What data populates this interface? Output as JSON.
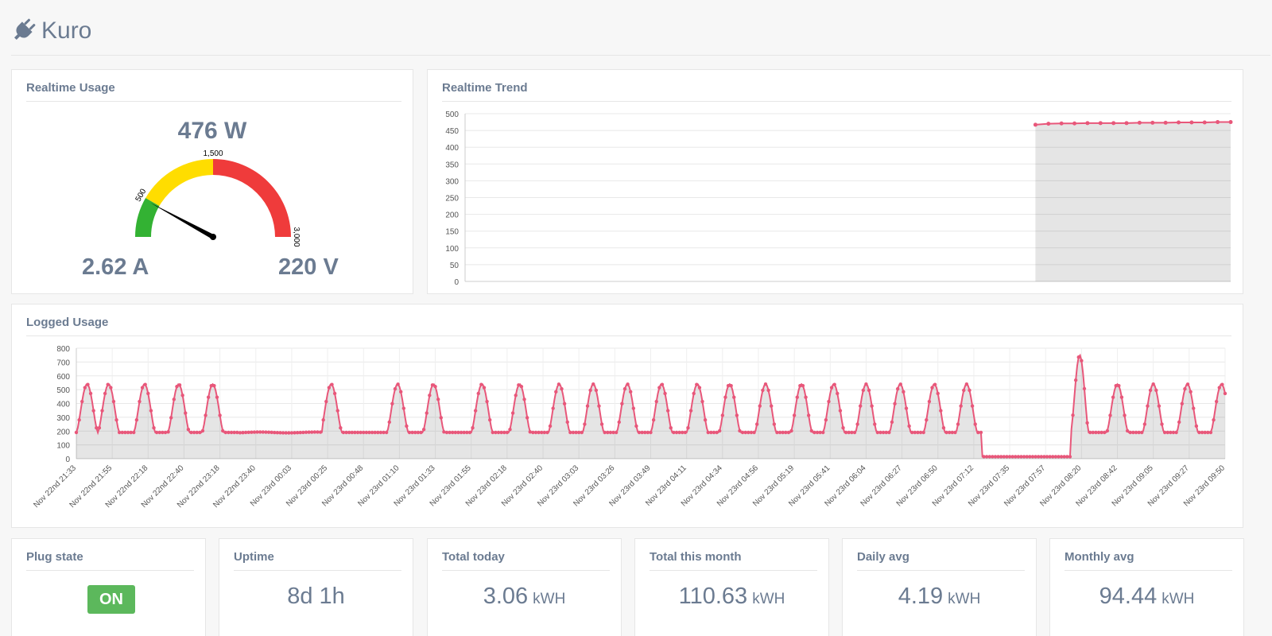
{
  "app": {
    "title": "Kuro",
    "icon": "plug-icon"
  },
  "realtime_usage": {
    "title": "Realtime Usage",
    "power": "476 W",
    "current": "2.62 A",
    "voltage": "220 V",
    "gauge": {
      "min": 0,
      "max": 3000,
      "value": 476,
      "green_to": 500,
      "yellow_to": 1500,
      "tick_500": "500",
      "tick_1500": "1,500",
      "tick_3000": "3,000"
    },
    "colors": {
      "green": "#33b233",
      "yellow": "#ffdd00",
      "red": "#ef3b3b"
    }
  },
  "realtime_trend": {
    "title": "Realtime Trend",
    "chart_data": {
      "type": "area",
      "ylim": [
        0,
        500
      ],
      "yticks": [
        "0",
        "50",
        "100",
        "150",
        "200",
        "250",
        "300",
        "350",
        "400",
        "450",
        "500"
      ],
      "series": [
        {
          "values": [
            467,
            470,
            471,
            471,
            472,
            472,
            472,
            472,
            473,
            473,
            473,
            474,
            474,
            474,
            475,
            475
          ]
        }
      ],
      "empty_fraction": 0.745,
      "color": "#e8577a"
    }
  },
  "logged_usage": {
    "title": "Logged Usage",
    "chart_data": {
      "type": "area",
      "ylim": [
        0,
        800
      ],
      "yticks": [
        "0",
        "100",
        "200",
        "300",
        "400",
        "500",
        "600",
        "700",
        "800"
      ],
      "categories": [
        "Nov 22nd 21:33",
        "Nov 22nd 21:55",
        "Nov 22nd 22:18",
        "Nov 22nd 22:40",
        "Nov 22nd 23:18",
        "Nov 22nd 23:40",
        "Nov 23rd 00:03",
        "Nov 23rd 00:25",
        "Nov 23rd 00:48",
        "Nov 23rd 01:10",
        "Nov 23rd 01:33",
        "Nov 23rd 01:55",
        "Nov 23rd 02:18",
        "Nov 23rd 02:40",
        "Nov 23rd 03:03",
        "Nov 23rd 03:26",
        "Nov 23rd 03:49",
        "Nov 23rd 04:11",
        "Nov 23rd 04:34",
        "Nov 23rd 04:56",
        "Nov 23rd 05:19",
        "Nov 23rd 05:41",
        "Nov 23rd 06:04",
        "Nov 23rd 06:27",
        "Nov 23rd 06:50",
        "Nov 23rd 07:12",
        "Nov 23rd 07:35",
        "Nov 23rd 07:57",
        "Nov 23rd 08:20",
        "Nov 23rd 08:42",
        "Nov 23rd 09:05",
        "Nov 23rd 09:27",
        "Nov 23rd 09:50"
      ],
      "cycles": [
        0.3,
        0.9,
        1.9,
        2.85,
        3.8,
        7.1,
        8.95,
        9.95,
        11.3,
        12.35,
        13.45,
        14.4,
        15.35,
        16.3,
        17.3,
        18.2,
        19.2,
        20.2,
        21.1,
        22.0,
        22.95,
        23.9,
        24.8,
        29.0,
        30.0,
        30.95,
        31.9
      ],
      "peak": 540,
      "base": 190,
      "flat_segments": [
        [
          4.55,
          6.85,
          190
        ],
        [
          25.2,
          27.7,
          15
        ]
      ],
      "spike": {
        "x": 27.95,
        "value": 750
      },
      "color": "#e8577a"
    }
  },
  "stats": [
    {
      "title": "Plug state",
      "value": "ON",
      "unit": ""
    },
    {
      "title": "Uptime",
      "value": "8d 1h",
      "unit": ""
    },
    {
      "title": "Total today",
      "value": "3.06",
      "unit": "kWH"
    },
    {
      "title": "Total this month",
      "value": "110.63",
      "unit": "kWH"
    },
    {
      "title": "Daily avg",
      "value": "4.19",
      "unit": "kWH"
    },
    {
      "title": "Monthly avg",
      "value": "94.44",
      "unit": "kWH"
    }
  ]
}
